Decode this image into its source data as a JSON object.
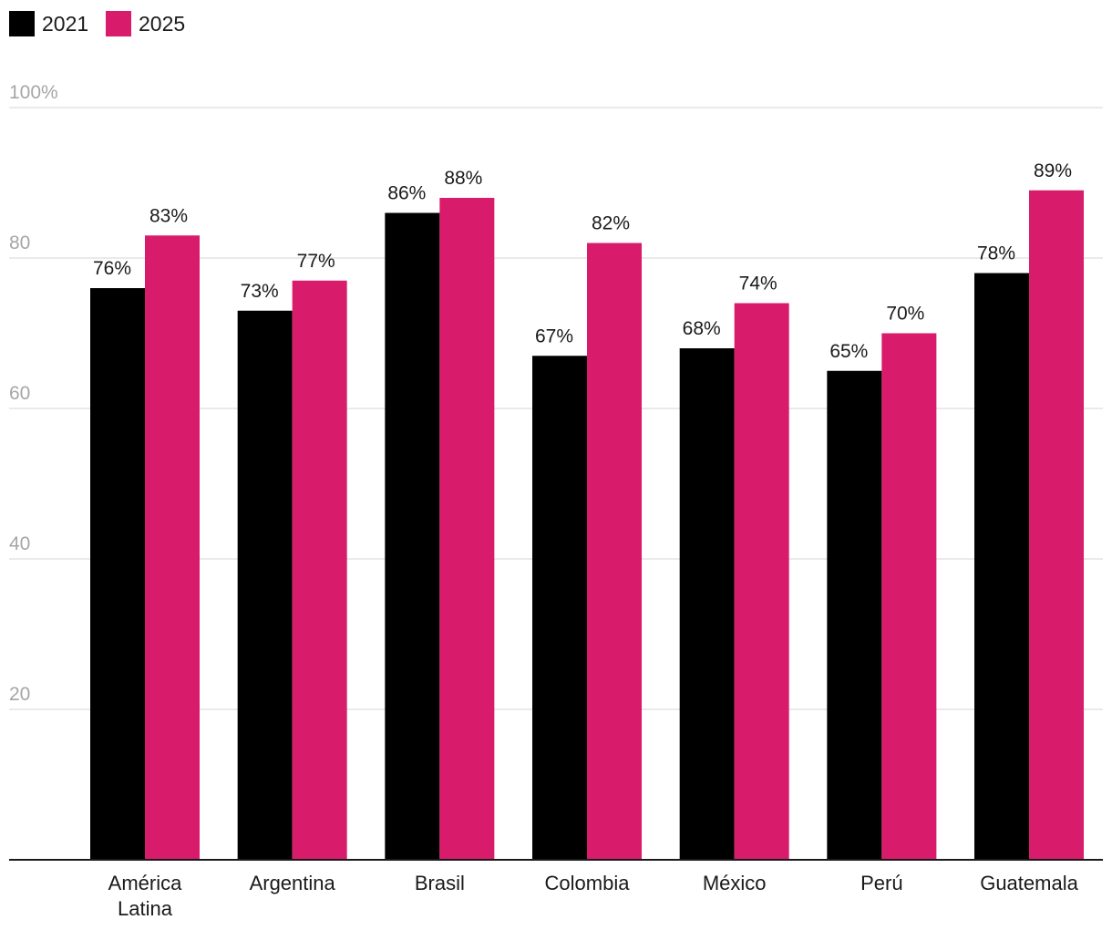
{
  "chart_data": {
    "type": "bar",
    "title": "",
    "xlabel": "",
    "ylabel": "",
    "ylim": [
      0,
      100
    ],
    "yticks": [
      {
        "value": 20,
        "label": "20"
      },
      {
        "value": 40,
        "label": "40"
      },
      {
        "value": 60,
        "label": "60"
      },
      {
        "value": 80,
        "label": "80"
      },
      {
        "value": 100,
        "label": "100%"
      }
    ],
    "grid": true,
    "legend_position": "top-left",
    "categories": [
      [
        "América",
        "Latina"
      ],
      [
        "Argentina"
      ],
      [
        "Brasil"
      ],
      [
        "Colombia"
      ],
      [
        "México"
      ],
      [
        "Perú"
      ],
      [
        "Guatemala"
      ]
    ],
    "series": [
      {
        "name": "2021",
        "color": "#000000",
        "values": [
          76,
          73,
          86,
          67,
          68,
          65,
          78
        ],
        "labels": [
          "76%",
          "73%",
          "86%",
          "67%",
          "68%",
          "65%",
          "78%"
        ]
      },
      {
        "name": "2025",
        "color": "#d81b6a",
        "values": [
          83,
          77,
          88,
          82,
          74,
          70,
          89
        ],
        "labels": [
          "83%",
          "77%",
          "88%",
          "82%",
          "74%",
          "70%",
          "89%"
        ]
      }
    ],
    "gridline_color": "#e3e3e3",
    "axis_color": "#1a1a1a"
  }
}
